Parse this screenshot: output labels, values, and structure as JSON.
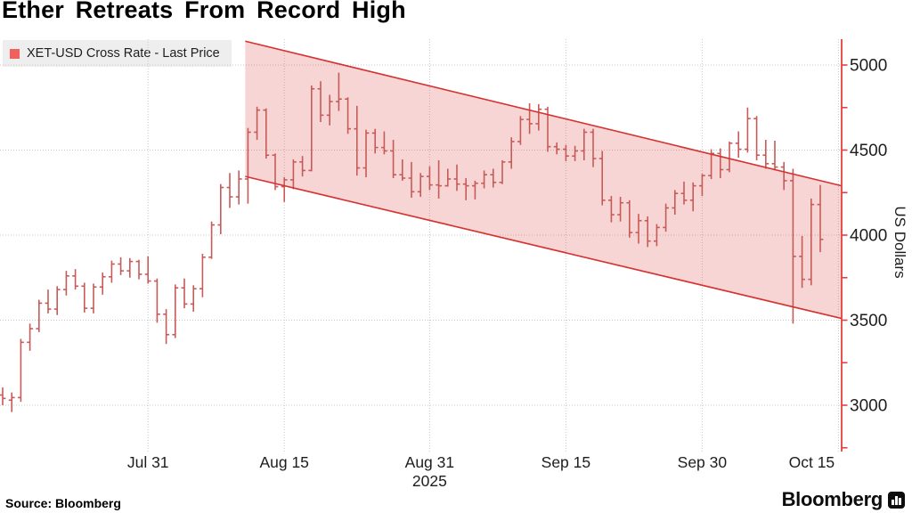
{
  "title": "Ether Retreats From Record High",
  "legend": {
    "label": "XET-USD Cross Rate - Last Price",
    "swatch_color": "#f0615d"
  },
  "source_note": "Source: Bloomberg",
  "brand": {
    "wordmark": "Bloomberg"
  },
  "chart_data": {
    "type": "bar",
    "subtype": "ohlc-open-close-ticks",
    "title": "Ether Retreats From Record High",
    "series_name": "XET-USD Cross Rate - Last Price",
    "xlabel": "",
    "ylabel": "US Dollars",
    "year_label": "2025",
    "ylim": [
      2760,
      5150
    ],
    "y_ticks": [
      5000,
      4500,
      4000,
      3500,
      3000
    ],
    "y_minor_ticks": [
      4750,
      4250,
      3750,
      3250,
      2750
    ],
    "grid": "dotted",
    "legend_position": "top-left",
    "x_start_label": "Jul 15",
    "x_ticks": [
      {
        "label": "Jul 31",
        "day": 16
      },
      {
        "label": "Aug 15",
        "day": 31
      },
      {
        "label": "Aug 31",
        "day": 47
      },
      {
        "label": "Sep 15",
        "day": 62
      },
      {
        "label": "Sep 30",
        "day": 77
      },
      {
        "label": "Oct 15",
        "day": 92
      }
    ],
    "bars_ohlc": [
      [
        3060,
        3105,
        3000,
        3040
      ],
      [
        3030,
        3075,
        2960,
        3045
      ],
      [
        3045,
        3390,
        3020,
        3370
      ],
      [
        3370,
        3480,
        3320,
        3450
      ],
      [
        3450,
        3620,
        3430,
        3600
      ],
      [
        3600,
        3680,
        3540,
        3565
      ],
      [
        3565,
        3700,
        3530,
        3680
      ],
      [
        3680,
        3790,
        3645,
        3760
      ],
      [
        3760,
        3800,
        3680,
        3700
      ],
      [
        3700,
        3720,
        3545,
        3570
      ],
      [
        3570,
        3715,
        3540,
        3695
      ],
      [
        3695,
        3780,
        3650,
        3755
      ],
      [
        3755,
        3850,
        3720,
        3830
      ],
      [
        3830,
        3870,
        3765,
        3790
      ],
      [
        3790,
        3865,
        3750,
        3845
      ],
      [
        3845,
        3855,
        3740,
        3770
      ],
      [
        3770,
        3875,
        3715,
        3730
      ],
      [
        3730,
        3745,
        3485,
        3535
      ],
      [
        3535,
        3565,
        3360,
        3415
      ],
      [
        3415,
        3710,
        3395,
        3690
      ],
      [
        3690,
        3745,
        3570,
        3595
      ],
      [
        3595,
        3705,
        3550,
        3685
      ],
      [
        3685,
        3890,
        3635,
        3870
      ],
      [
        3870,
        4080,
        3860,
        4060
      ],
      [
        4060,
        4300,
        4005,
        4280
      ],
      [
        4280,
        4365,
        4160,
        4225
      ],
      [
        4225,
        4380,
        4180,
        4330
      ],
      [
        4330,
        4630,
        4185,
        4605
      ],
      [
        4605,
        4755,
        4560,
        4735
      ],
      [
        4735,
        4745,
        4450,
        4470
      ],
      [
        4470,
        4480,
        4265,
        4285
      ],
      [
        4285,
        4340,
        4195,
        4325
      ],
      [
        4325,
        4445,
        4270,
        4430
      ],
      [
        4430,
        4465,
        4345,
        4380
      ],
      [
        4380,
        4880,
        4375,
        4860
      ],
      [
        4860,
        4905,
        4665,
        4705
      ],
      [
        4705,
        4825,
        4645,
        4785
      ],
      [
        4785,
        4955,
        4730,
        4800
      ],
      [
        4800,
        4810,
        4595,
        4625
      ],
      [
        4625,
        4760,
        4350,
        4395
      ],
      [
        4395,
        4620,
        4340,
        4600
      ],
      [
        4600,
        4625,
        4480,
        4515
      ],
      [
        4515,
        4610,
        4475,
        4495
      ],
      [
        4495,
        4560,
        4335,
        4355
      ],
      [
        4355,
        4445,
        4320,
        4335
      ],
      [
        4335,
        4430,
        4220,
        4255
      ],
      [
        4255,
        4365,
        4225,
        4345
      ],
      [
        4345,
        4405,
        4265,
        4295
      ],
      [
        4295,
        4440,
        4215,
        4290
      ],
      [
        4290,
        4390,
        4285,
        4330
      ],
      [
        4330,
        4415,
        4260,
        4300
      ],
      [
        4300,
        4335,
        4205,
        4290
      ],
      [
        4290,
        4320,
        4210,
        4305
      ],
      [
        4305,
        4380,
        4275,
        4355
      ],
      [
        4355,
        4390,
        4280,
        4310
      ],
      [
        4310,
        4440,
        4300,
        4430
      ],
      [
        4430,
        4575,
        4390,
        4550
      ],
      [
        4550,
        4700,
        4530,
        4680
      ],
      [
        4680,
        4775,
        4595,
        4655
      ],
      [
        4655,
        4770,
        4615,
        4740
      ],
      [
        4740,
        4755,
        4490,
        4520
      ],
      [
        4520,
        4545,
        4475,
        4505
      ],
      [
        4505,
        4530,
        4435,
        4465
      ],
      [
        4465,
        4525,
        4435,
        4495
      ],
      [
        4495,
        4625,
        4440,
        4605
      ],
      [
        4605,
        4625,
        4400,
        4450
      ],
      [
        4450,
        4495,
        4175,
        4205
      ],
      [
        4205,
        4230,
        4075,
        4120
      ],
      [
        4120,
        4225,
        4080,
        4190
      ],
      [
        4190,
        4205,
        3985,
        4015
      ],
      [
        4015,
        4125,
        3950,
        4085
      ],
      [
        4085,
        4110,
        3930,
        3965
      ],
      [
        3965,
        4065,
        3935,
        4045
      ],
      [
        4045,
        4185,
        4020,
        4160
      ],
      [
        4160,
        4265,
        4120,
        4245
      ],
      [
        4245,
        4315,
        4180,
        4205
      ],
      [
        4205,
        4310,
        4140,
        4290
      ],
      [
        4290,
        4360,
        4230,
        4350
      ],
      [
        4350,
        4505,
        4330,
        4480
      ],
      [
        4480,
        4510,
        4335,
        4385
      ],
      [
        4385,
        4550,
        4370,
        4540
      ],
      [
        4540,
        4610,
        4455,
        4505
      ],
      [
        4505,
        4750,
        4485,
        4685
      ],
      [
        4685,
        4700,
        4440,
        4470
      ],
      [
        4470,
        4560,
        4390,
        4420
      ],
      [
        4420,
        4555,
        4380,
        4400
      ],
      [
        4400,
        4430,
        4265,
        4320
      ],
      [
        4320,
        4390,
        3480,
        3875
      ],
      [
        3875,
        3995,
        3690,
        3740
      ],
      [
        3740,
        4215,
        3705,
        4180
      ],
      [
        4180,
        4295,
        3900,
        3975
      ]
    ],
    "channel": {
      "description": "descending regression channel band",
      "start_day": 26.7,
      "end_at_axis": true,
      "top_values": [
        5140,
        4290
      ],
      "bottom_values": [
        4345,
        3510
      ]
    },
    "colors": {
      "bar": "#c75b58",
      "channel_fill": "rgba(214,62,60,0.22)",
      "channel_line": "#d63230",
      "axis": "#e2423d",
      "grid": "#c8c8c8",
      "text": "#1d1d1d"
    }
  }
}
